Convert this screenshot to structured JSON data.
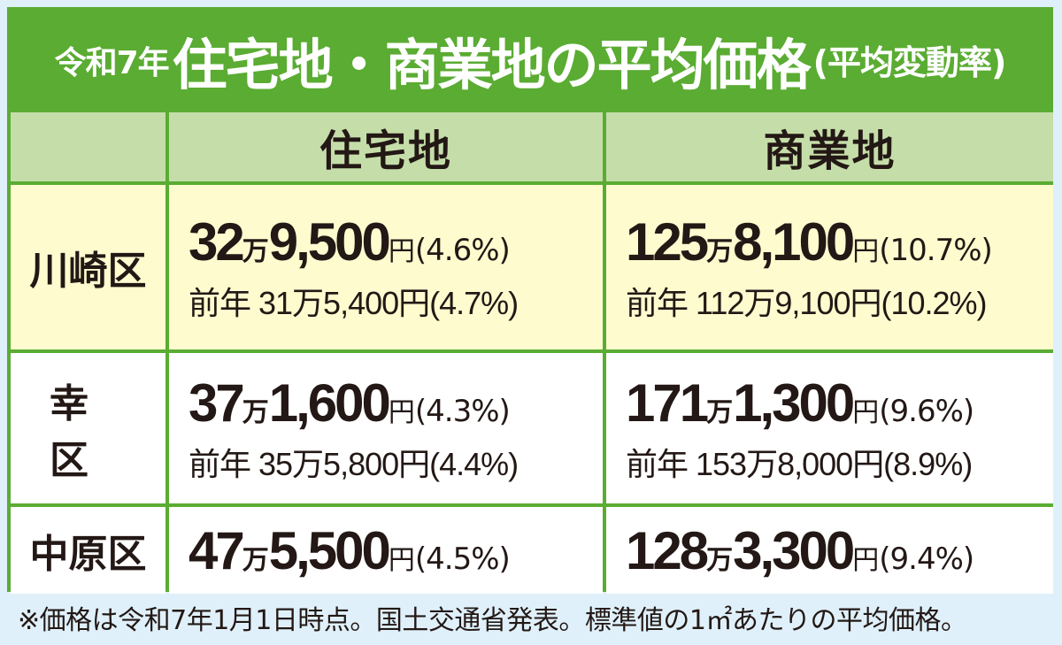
{
  "title": {
    "prefix": "令和7年",
    "main": "住宅地・商業地の平均価格",
    "suffix": "(平均変動率)"
  },
  "columns": {
    "ward": "",
    "residential": "住宅地",
    "commercial": "商業地"
  },
  "labels": {
    "prev_year": "前年"
  },
  "rows": [
    {
      "ward": "川崎区",
      "residential": {
        "man": "32",
        "man_unit": "万",
        "rest": "9,500",
        "yen": "円",
        "rate": "(4.6%)",
        "prev": "前年 31万5,400円(4.7%)"
      },
      "commercial": {
        "man": "125",
        "man_unit": "万",
        "rest": "8,100",
        "yen": "円",
        "rate": "(10.7%)",
        "prev": "前年 112万9,100円(10.2%)"
      }
    },
    {
      "ward": "幸区",
      "residential": {
        "man": "37",
        "man_unit": "万",
        "rest": "1,600",
        "yen": "円",
        "rate": "(4.3%)",
        "prev": "前年 35万5,800円(4.4%)"
      },
      "commercial": {
        "man": "171",
        "man_unit": "万",
        "rest": "1,300",
        "yen": "円",
        "rate": "(9.6%)",
        "prev": "前年 153万8,000円(8.9%)"
      }
    },
    {
      "ward": "中原区",
      "residential": {
        "man": "47",
        "man_unit": "万",
        "rest": "5,500",
        "yen": "円",
        "rate": "(4.5%)"
      },
      "commercial": {
        "man": "128",
        "man_unit": "万",
        "rest": "3,300",
        "yen": "円",
        "rate": "(9.4%)"
      }
    }
  ],
  "footnote": "※価格は令和7年1月1日時点。国土交通省発表。標準値の1㎡あたりの平均価格。",
  "colors": {
    "frame_green": "#5aac32",
    "header_green": "#c5dea9",
    "row_yellow": "#fefbcf",
    "row_white": "#ffffff",
    "background": "#dff0fa",
    "text": "#231815"
  }
}
